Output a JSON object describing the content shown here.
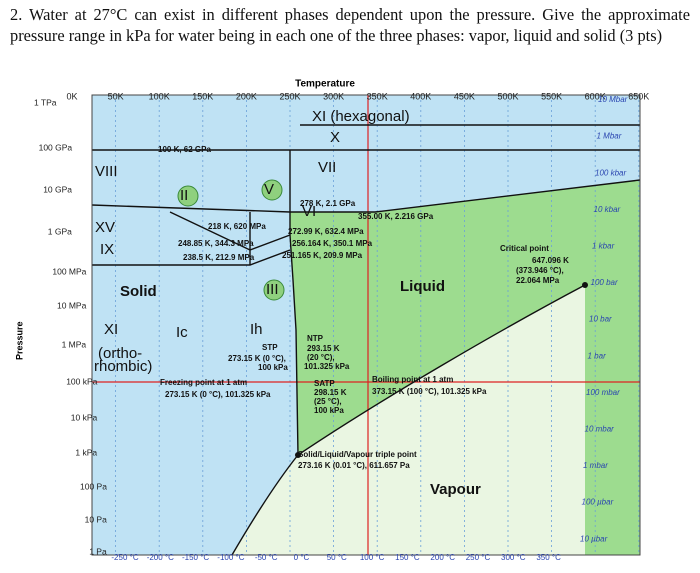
{
  "question": "2. Water at 27°C can exist in different phases dependent upon the pressure. Give the approximate pressure range in kPa for water being in each one of the three phases: vapor, liquid and solid (3 pts)",
  "diagram": {
    "temperature_label": "Temperature",
    "pressure_label": "Pressure",
    "kelvin_ticks": [
      "0K",
      "50K",
      "100K",
      "150K",
      "200K",
      "250K",
      "300K",
      "350K",
      "400K",
      "450K",
      "500K",
      "550K",
      "600K",
      "650K"
    ],
    "pascal_ticks": [
      "1 TPa",
      "100 GPa",
      "10 GPa",
      "1 GPa",
      "100 MPa",
      "10 MPa",
      "1 MPa",
      "100 kPa",
      "10 kPa",
      "1 kPa",
      "100 Pa",
      "10 Pa",
      "1 Pa"
    ],
    "bar_ticks": [
      "10 Mbar",
      "1 Mbar",
      "100 kbar",
      "10 kbar",
      "1 kbar",
      "100 bar",
      "10 bar",
      "1 bar",
      "100 mbar",
      "10 mbar",
      "1 mbar",
      "100 µbar",
      "10 µbar"
    ],
    "celsius_ticks": [
      "-250 °C",
      "-200 °C",
      "-150 °C",
      "-100 °C",
      "-50 °C",
      "0 °C",
      "50 °C",
      "100 °C",
      "150 °C",
      "200 °C",
      "250 °C",
      "300 °C",
      "350 °C"
    ],
    "phases": [
      "XI (hexagonal)",
      "X",
      "VII",
      "VIII",
      "II",
      "V",
      "VI",
      "XV",
      "IX",
      "III",
      "Solid",
      "Liquid",
      "Vapour",
      "XI",
      "(ortho-",
      "rhombic)",
      "Ic",
      "Ih"
    ],
    "annotations": [
      "100 K, 62 GPa",
      "278 K, 2.1 GPa",
      "355.00 K, 2.216 GPa",
      "218 K, 620 MPa",
      "272.99 K, 632.4 MPa",
      "248.85 K, 344.3 MPa",
      "256.164 K, 350.1 MPa",
      "238.5 K, 212.9 MPa",
      "251.165 K, 209.9 MPa",
      "Critical point",
      "647.096 K",
      "(373.946 °C),",
      "22.064 MPa",
      "STP",
      "273.15 K (0 °C),",
      "100 kPa",
      "NTP",
      "293.15 K",
      "(20 °C),",
      "101.325 kPa",
      "SATP",
      "298.15 K",
      "(25 °C),",
      "100 kPa",
      "Freezing point at 1 atm",
      "273.15 K (0 °C), 101.325 kPa",
      "Boiling point at 1 atm",
      "373.15 K (100 °C), 101.325 kPa",
      "Solid/Liquid/Vapour triple point",
      "273.16 K (0.01 °C), 611.657 Pa"
    ]
  }
}
